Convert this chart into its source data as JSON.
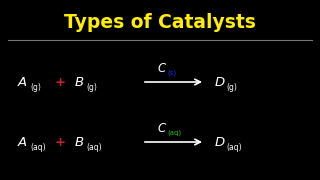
{
  "background_color": "#000000",
  "title": "Types of Catalysts",
  "title_color": "#FFEE00",
  "title_fontsize": 13.5,
  "separator_color": "#777777",
  "line1": {
    "A": "A",
    "A_sub": "(g)",
    "plus_color": "#CC2222",
    "B": "B",
    "B_sub": "(g)",
    "C": "C",
    "C_sub": "(s)",
    "C_sub_color": "#2222FF",
    "D": "D",
    "D_sub": "(g)"
  },
  "line2": {
    "A": "A",
    "A_sub": "(aq)",
    "plus_color": "#CC2222",
    "B": "B",
    "B_sub": "(aq)",
    "C": "C",
    "C_sub": "(aq)",
    "C_sub_color": "#22BB22",
    "D": "D",
    "D_sub": "(aq)"
  },
  "text_color": "#FFFFFF",
  "arrow_color": "#FFFFFF",
  "fs_main": 9.5,
  "fs_sub": 5.5,
  "fs_C": 8.5,
  "fs_Csub": 5.0
}
